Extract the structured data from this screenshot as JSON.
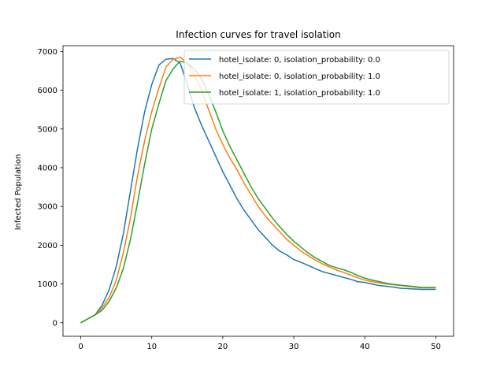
{
  "chart_data": {
    "type": "line",
    "title": "Infection curves for travel isolation",
    "xlabel": "",
    "ylabel": "Infected Population",
    "xlim": [
      -2.5,
      52.5
    ],
    "ylim": [
      -350,
      7150
    ],
    "xticks": [
      0,
      10,
      20,
      30,
      40,
      50
    ],
    "yticks": [
      0,
      1000,
      2000,
      3000,
      4000,
      5000,
      6000,
      7000
    ],
    "grid": false,
    "legend_position": "top-right",
    "x": [
      0,
      1,
      2,
      3,
      4,
      5,
      6,
      7,
      8,
      9,
      10,
      11,
      12,
      13,
      14,
      15,
      16,
      17,
      18,
      19,
      20,
      21,
      22,
      23,
      24,
      25,
      26,
      27,
      28,
      29,
      30,
      31,
      32,
      33,
      34,
      35,
      36,
      37,
      38,
      39,
      40,
      41,
      42,
      43,
      44,
      45,
      46,
      47,
      48,
      49,
      50
    ],
    "series": [
      {
        "name": "hotel_isolate: 0, isolation_probability: 0.0",
        "color": "#1f77b4",
        "values": [
          0,
          100,
          200,
          450,
          850,
          1450,
          2300,
          3400,
          4500,
          5450,
          6150,
          6650,
          6800,
          6820,
          6700,
          6150,
          5550,
          5100,
          4700,
          4300,
          3900,
          3550,
          3200,
          2900,
          2650,
          2400,
          2200,
          2000,
          1850,
          1750,
          1630,
          1560,
          1480,
          1400,
          1320,
          1270,
          1220,
          1170,
          1120,
          1060,
          1040,
          1000,
          960,
          940,
          920,
          890,
          880,
          870,
          860,
          860,
          860
        ]
      },
      {
        "name": "hotel_isolate: 0, isolation_probability: 1.0",
        "color": "#ff7f0e",
        "values": [
          0,
          100,
          200,
          380,
          650,
          1100,
          1800,
          2700,
          3800,
          4700,
          5450,
          6050,
          6600,
          6800,
          6850,
          6700,
          6400,
          6000,
          5500,
          5000,
          4600,
          4250,
          3950,
          3600,
          3300,
          3000,
          2750,
          2550,
          2350,
          2150,
          2000,
          1850,
          1730,
          1620,
          1520,
          1440,
          1360,
          1300,
          1230,
          1160,
          1100,
          1060,
          1030,
          1000,
          980,
          960,
          940,
          920,
          900,
          900,
          900
        ]
      },
      {
        "name": "hotel_isolate: 1, isolation_probability: 1.0",
        "color": "#2ca02c",
        "values": [
          0,
          100,
          200,
          320,
          550,
          900,
          1400,
          2150,
          3100,
          4100,
          5000,
          5650,
          6250,
          6550,
          6750,
          6700,
          6550,
          6300,
          5900,
          5450,
          4950,
          4550,
          4200,
          3850,
          3500,
          3200,
          2950,
          2700,
          2480,
          2280,
          2100,
          1950,
          1800,
          1680,
          1580,
          1480,
          1420,
          1370,
          1300,
          1220,
          1150,
          1100,
          1060,
          1020,
          990,
          970,
          950,
          930,
          910,
          910,
          910
        ]
      }
    ]
  }
}
